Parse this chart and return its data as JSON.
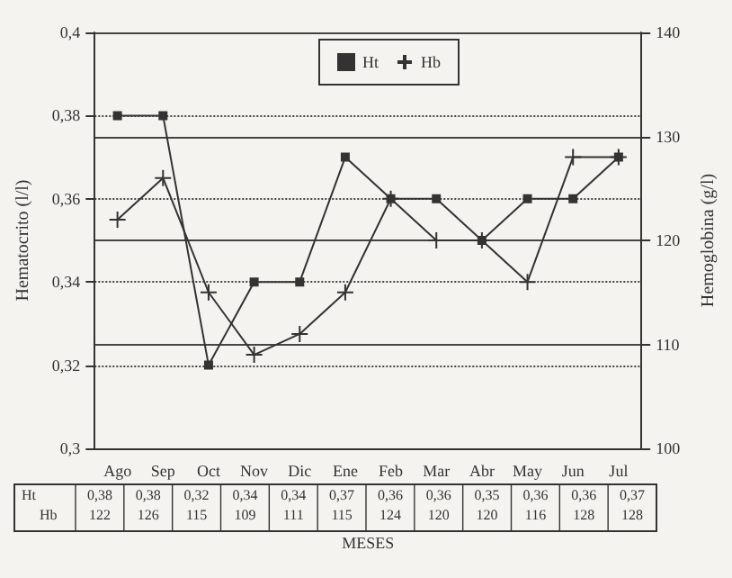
{
  "chart_data": {
    "type": "line",
    "xlabel": "MESES",
    "ylabel": "Hematocrito (l/l)",
    "y2label": "Hemoglobina (g/l)",
    "categories": [
      "Ago",
      "Sep",
      "Oct",
      "Nov",
      "Dic",
      "Ene",
      "Feb",
      "Mar",
      "Abr",
      "May",
      "Jun",
      "Jul"
    ],
    "series": [
      {
        "name": "Ht",
        "color": "#333333",
        "marker": "square",
        "values": [
          0.38,
          0.38,
          0.32,
          0.34,
          0.34,
          0.37,
          0.36,
          0.36,
          0.35,
          0.36,
          0.36,
          0.37
        ],
        "value_labels": [
          "0,38",
          "0,38",
          "0,32",
          "0,34",
          "0,34",
          "0,37",
          "0,36",
          "0,36",
          "0,35",
          "0,36",
          "0,36",
          "0,37"
        ]
      },
      {
        "name": "Hb",
        "color": "#333333",
        "marker": "cross",
        "axis": "y2",
        "values": [
          122,
          126,
          115,
          109,
          111,
          115,
          124,
          120,
          120,
          116,
          128,
          128
        ],
        "value_labels": [
          "122",
          "126",
          "115",
          "109",
          "111",
          "115",
          "124",
          "120",
          "120",
          "116",
          "128",
          "128"
        ]
      }
    ],
    "ylim": [
      0.3,
      0.4
    ],
    "yticks": [
      {
        "value": 0.3,
        "label": "0,3"
      },
      {
        "value": 0.32,
        "label": "0,32"
      },
      {
        "value": 0.34,
        "label": "0,34"
      },
      {
        "value": 0.36,
        "label": "0,36"
      },
      {
        "value": 0.38,
        "label": "0,38"
      },
      {
        "value": 0.4,
        "label": "0,4"
      }
    ],
    "y2lim": [
      100,
      140
    ],
    "y2ticks": [
      100,
      110,
      120,
      130,
      140
    ],
    "grid": true,
    "legend": "top right",
    "line_style": "solid"
  }
}
